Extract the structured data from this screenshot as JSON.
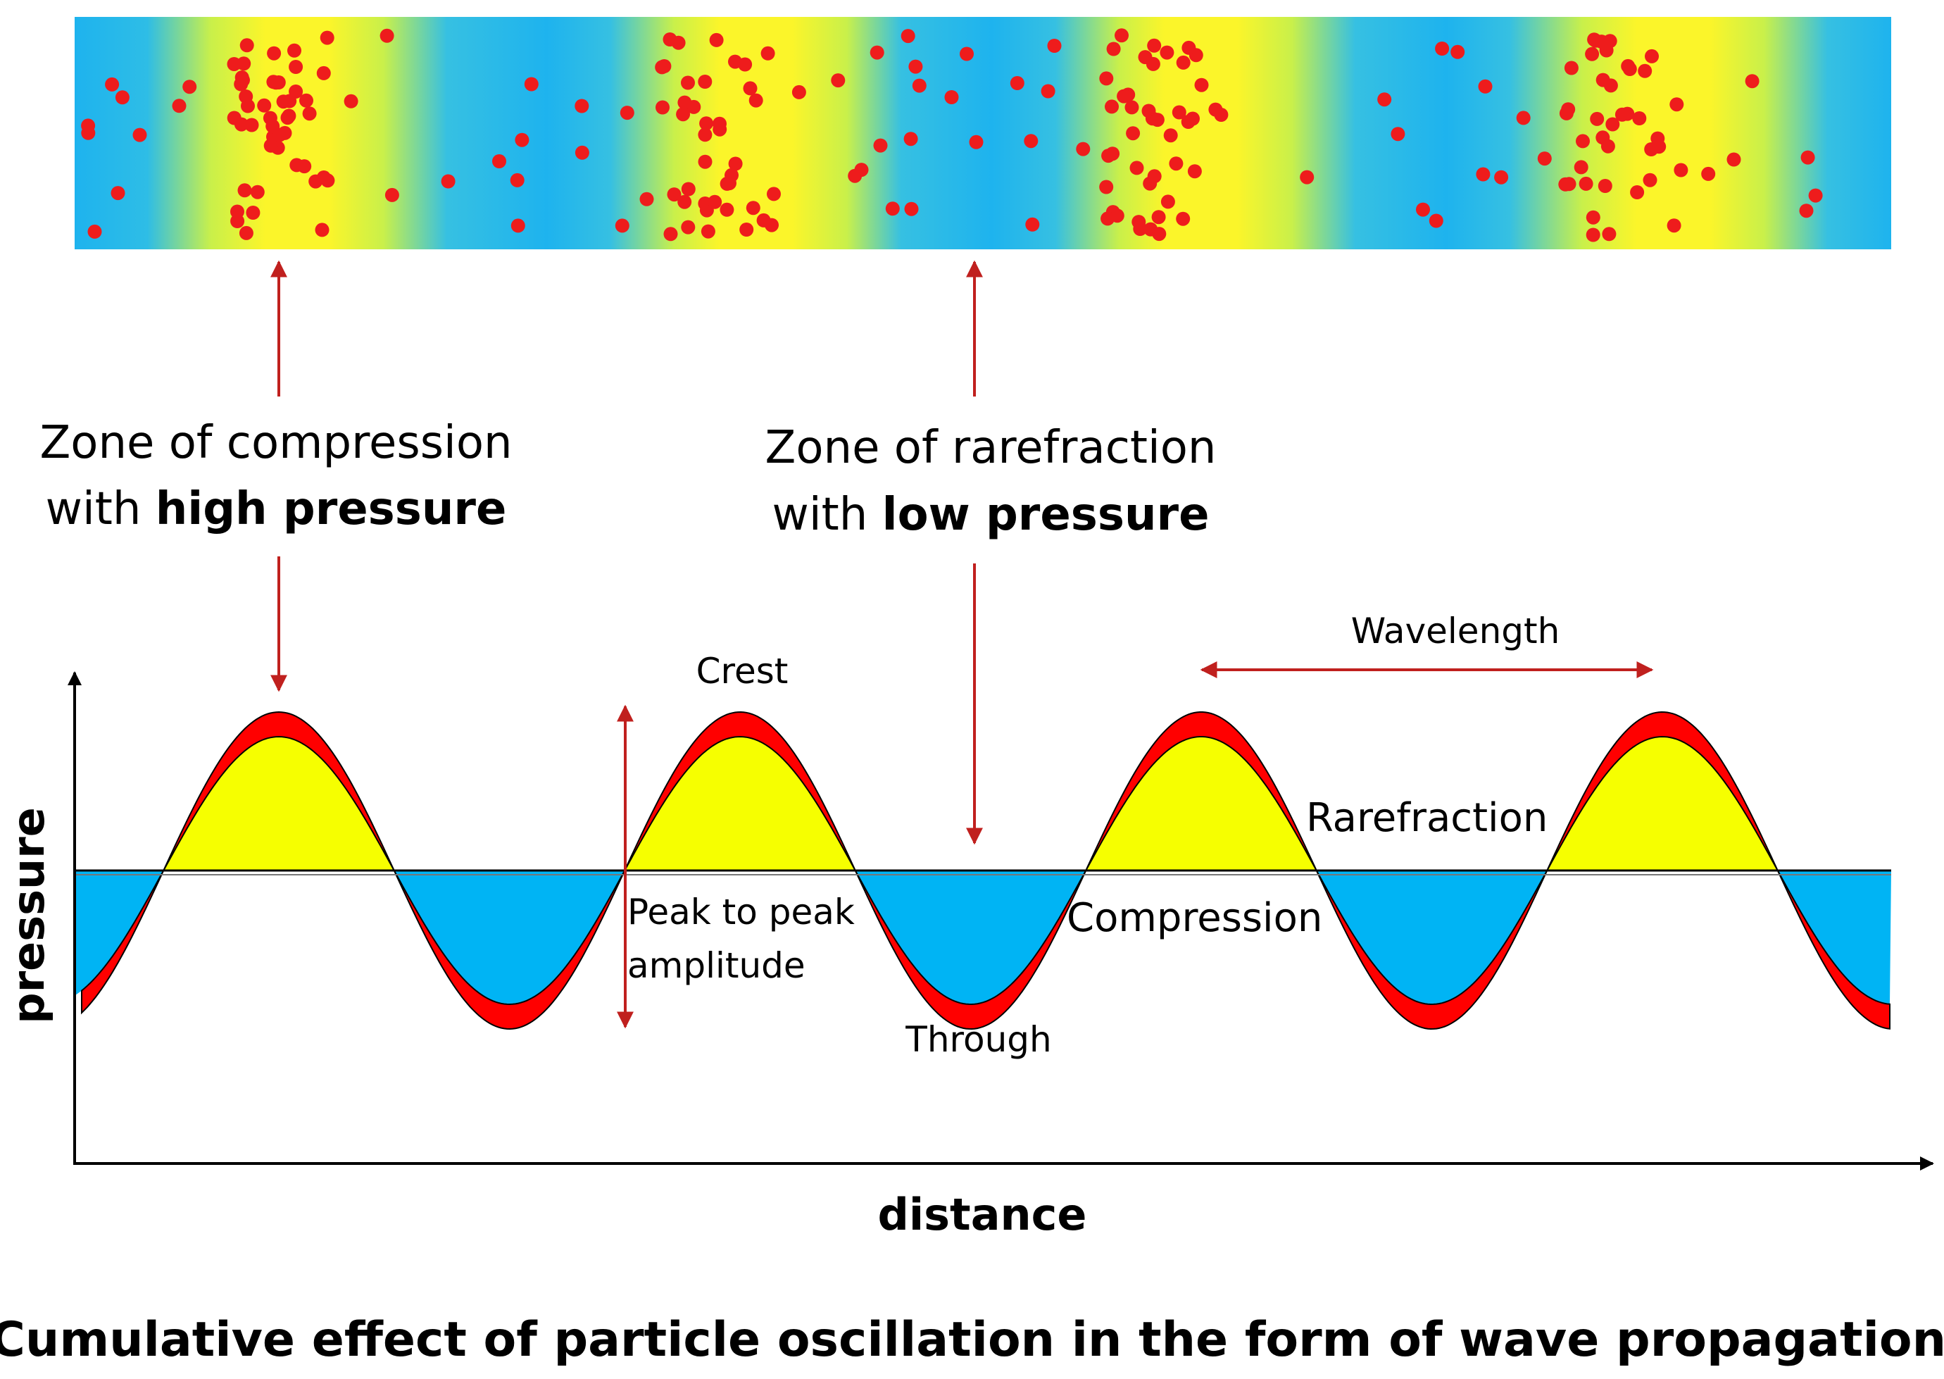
{
  "labels": {
    "compression_zone_line1": "Zone of compression",
    "compression_zone_line2_prefix": "with ",
    "compression_zone_line2_bold": "high pressure",
    "rarefaction_zone_line1": "Zone of rarefraction",
    "rarefaction_zone_line2_prefix": "with ",
    "rarefaction_zone_line2_bold": "low pressure",
    "crest": "Crest",
    "wavelength": "Wavelength",
    "rarefraction": "Rarefraction",
    "compression": "Compression",
    "peak_to_peak_line1": "Peak to peak",
    "peak_to_peak_line2": "amplitude",
    "trough": "Through"
  },
  "axes": {
    "y_label": "pressure",
    "x_label": "distance"
  },
  "caption": "Cumulative effect of particle oscillation in the form of wave propagation",
  "colors": {
    "particle": "#ee1c1c",
    "arrow": "#c0201e",
    "wave_band": "#ff0000",
    "positive_fill": "#f6ff00",
    "negative_fill": "#00b4f4",
    "tube_blue": "#1eb3ee",
    "tube_yellow": "#fbf52a"
  }
}
